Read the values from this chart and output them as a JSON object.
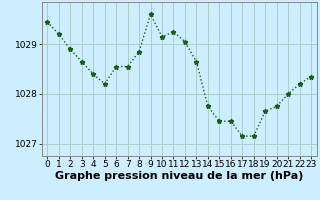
{
  "x": [
    0,
    1,
    2,
    3,
    4,
    5,
    6,
    7,
    8,
    9,
    10,
    11,
    12,
    13,
    14,
    15,
    16,
    17,
    18,
    19,
    20,
    21,
    22,
    23
  ],
  "y": [
    1029.45,
    1029.2,
    1028.9,
    1028.65,
    1028.4,
    1028.2,
    1028.55,
    1028.55,
    1028.85,
    1029.6,
    1029.15,
    1029.25,
    1029.05,
    1028.65,
    1027.75,
    1027.45,
    1027.45,
    1027.15,
    1027.15,
    1027.65,
    1027.75,
    1028.0,
    1028.2,
    1028.35
  ],
  "line_color": "#1a5c1a",
  "marker": "*",
  "marker_size": 3.5,
  "bg_color": "#cceeff",
  "grid_color": "#aacccc",
  "xlabel": "Graphe pression niveau de la mer (hPa)",
  "xlabel_fontsize": 8,
  "yticks": [
    1027,
    1028,
    1029
  ],
  "ylim": [
    1026.75,
    1029.85
  ],
  "xlim": [
    -0.5,
    23.5
  ],
  "line_width": 1.0,
  "tick_fontsize": 6.5,
  "xlabel_fontweight": "bold"
}
